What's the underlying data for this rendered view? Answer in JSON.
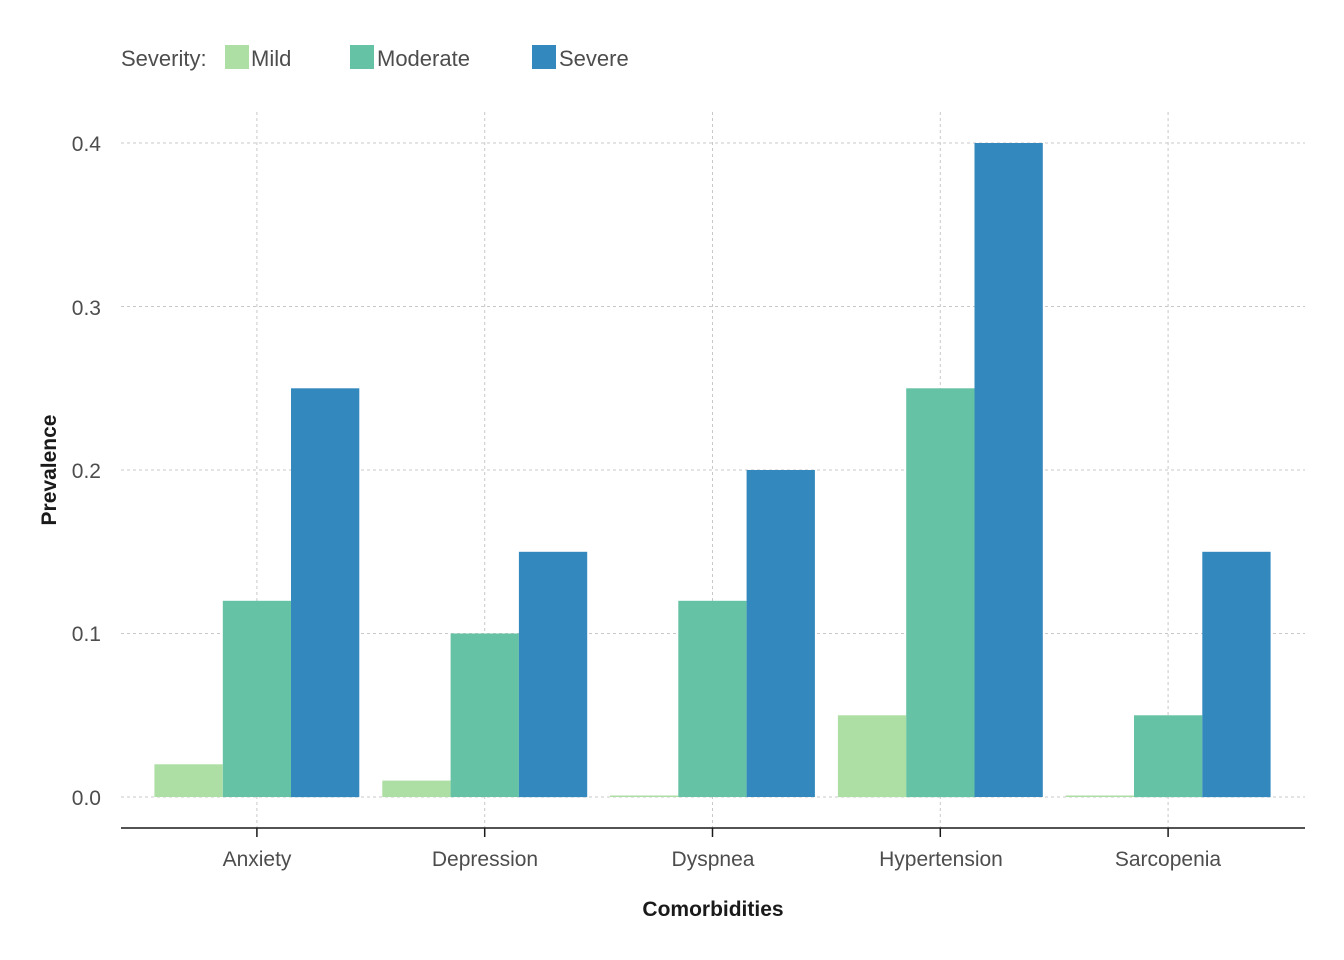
{
  "chart_data": {
    "type": "bar",
    "categories": [
      "Anxiety",
      "Depression",
      "Dyspnea",
      "Hypertension",
      "Sarcopenia"
    ],
    "series": [
      {
        "name": "Mild",
        "color": "#addea4",
        "values": [
          0.02,
          0.01,
          0.0,
          0.05,
          0.0
        ]
      },
      {
        "name": "Moderate",
        "color": "#66c2a4",
        "values": [
          0.12,
          0.1,
          0.12,
          0.25,
          0.05
        ]
      },
      {
        "name": "Severe",
        "color": "#3388be",
        "values": [
          0.25,
          0.15,
          0.2,
          0.4,
          0.15
        ]
      }
    ],
    "xlabel": "Comorbidities",
    "ylabel": "Prevalence",
    "ylim": [
      0,
      0.4
    ],
    "yticks": [
      "0.0",
      "0.1",
      "0.2",
      "0.3",
      "0.4"
    ],
    "legend": {
      "title": "Severity:",
      "placement": "top-left"
    },
    "grid": true
  }
}
